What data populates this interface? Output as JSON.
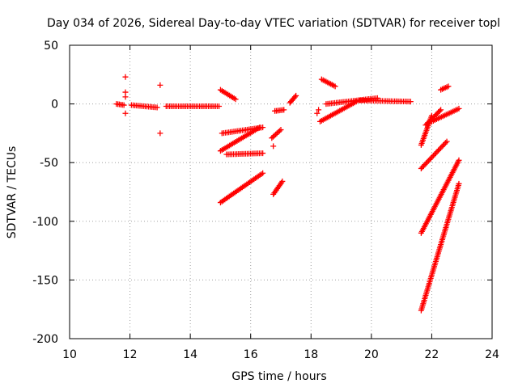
{
  "chart_data": {
    "type": "scatter",
    "title": "Day 034 of 2026, Sidereal Day-to-day VTEC variation (SDTVAR) for receiver topl",
    "xlabel": "GPS time / hours",
    "ylabel": "SDTVAR / TECUs",
    "xlim": [
      10,
      24
    ],
    "ylim": [
      -200,
      50
    ],
    "xticks": [
      10,
      12,
      14,
      16,
      18,
      20,
      22,
      24
    ],
    "yticks": [
      -200,
      -150,
      -100,
      -50,
      0,
      50
    ],
    "grid": true,
    "marker": "+",
    "color": "#ff0000",
    "segments": [
      {
        "x": [
          11.55,
          11.8
        ],
        "y": [
          0,
          -1
        ]
      },
      {
        "x": [
          12.05,
          12.9
        ],
        "y": [
          -1,
          -3
        ]
      },
      {
        "x": [
          13.2,
          14.95
        ],
        "y": [
          -2,
          -2
        ]
      },
      {
        "x": [
          15.0,
          15.5
        ],
        "y": [
          12,
          4
        ]
      },
      {
        "x": [
          15.05,
          16.4
        ],
        "y": [
          -25,
          -20
        ]
      },
      {
        "x": [
          15.0,
          16.3
        ],
        "y": [
          -40,
          -20
        ]
      },
      {
        "x": [
          15.2,
          16.4
        ],
        "y": [
          -43,
          -42
        ]
      },
      {
        "x": [
          15.0,
          16.4
        ],
        "y": [
          -84,
          -59
        ]
      },
      {
        "x": [
          16.7,
          17.0
        ],
        "y": [
          -29,
          -22
        ]
      },
      {
        "x": [
          16.8,
          17.1
        ],
        "y": [
          -6,
          -5
        ]
      },
      {
        "x": [
          16.75,
          17.05
        ],
        "y": [
          -77,
          -66
        ]
      },
      {
        "x": [
          17.3,
          17.5
        ],
        "y": [
          1,
          7
        ]
      },
      {
        "x": [
          18.35,
          18.8
        ],
        "y": [
          21,
          15
        ]
      },
      {
        "x": [
          18.3,
          19.5
        ],
        "y": [
          -15,
          2
        ]
      },
      {
        "x": [
          18.5,
          20.2
        ],
        "y": [
          0,
          5
        ]
      },
      {
        "x": [
          19.6,
          21.3
        ],
        "y": [
          3,
          2
        ]
      },
      {
        "x": [
          21.65,
          22.0
        ],
        "y": [
          -35,
          -10
        ]
      },
      {
        "x": [
          22.3,
          22.55
        ],
        "y": [
          12,
          15
        ]
      },
      {
        "x": [
          21.8,
          22.3
        ],
        "y": [
          -18,
          -5
        ]
      },
      {
        "x": [
          22.0,
          22.9
        ],
        "y": [
          -15,
          -4
        ]
      },
      {
        "x": [
          21.65,
          22.5
        ],
        "y": [
          -55,
          -32
        ]
      },
      {
        "x": [
          21.65,
          22.9
        ],
        "y": [
          -110,
          -48
        ]
      },
      {
        "x": [
          21.65,
          22.9
        ],
        "y": [
          -176,
          -68
        ]
      }
    ],
    "points": [
      {
        "x": 11.85,
        "y": 23
      },
      {
        "x": 11.85,
        "y": 10
      },
      {
        "x": 11.85,
        "y": 6
      },
      {
        "x": 11.85,
        "y": -8
      },
      {
        "x": 13.0,
        "y": 16
      },
      {
        "x": 13.0,
        "y": -25
      },
      {
        "x": 16.75,
        "y": -36
      },
      {
        "x": 18.2,
        "y": -8
      },
      {
        "x": 18.25,
        "y": -5
      }
    ]
  }
}
